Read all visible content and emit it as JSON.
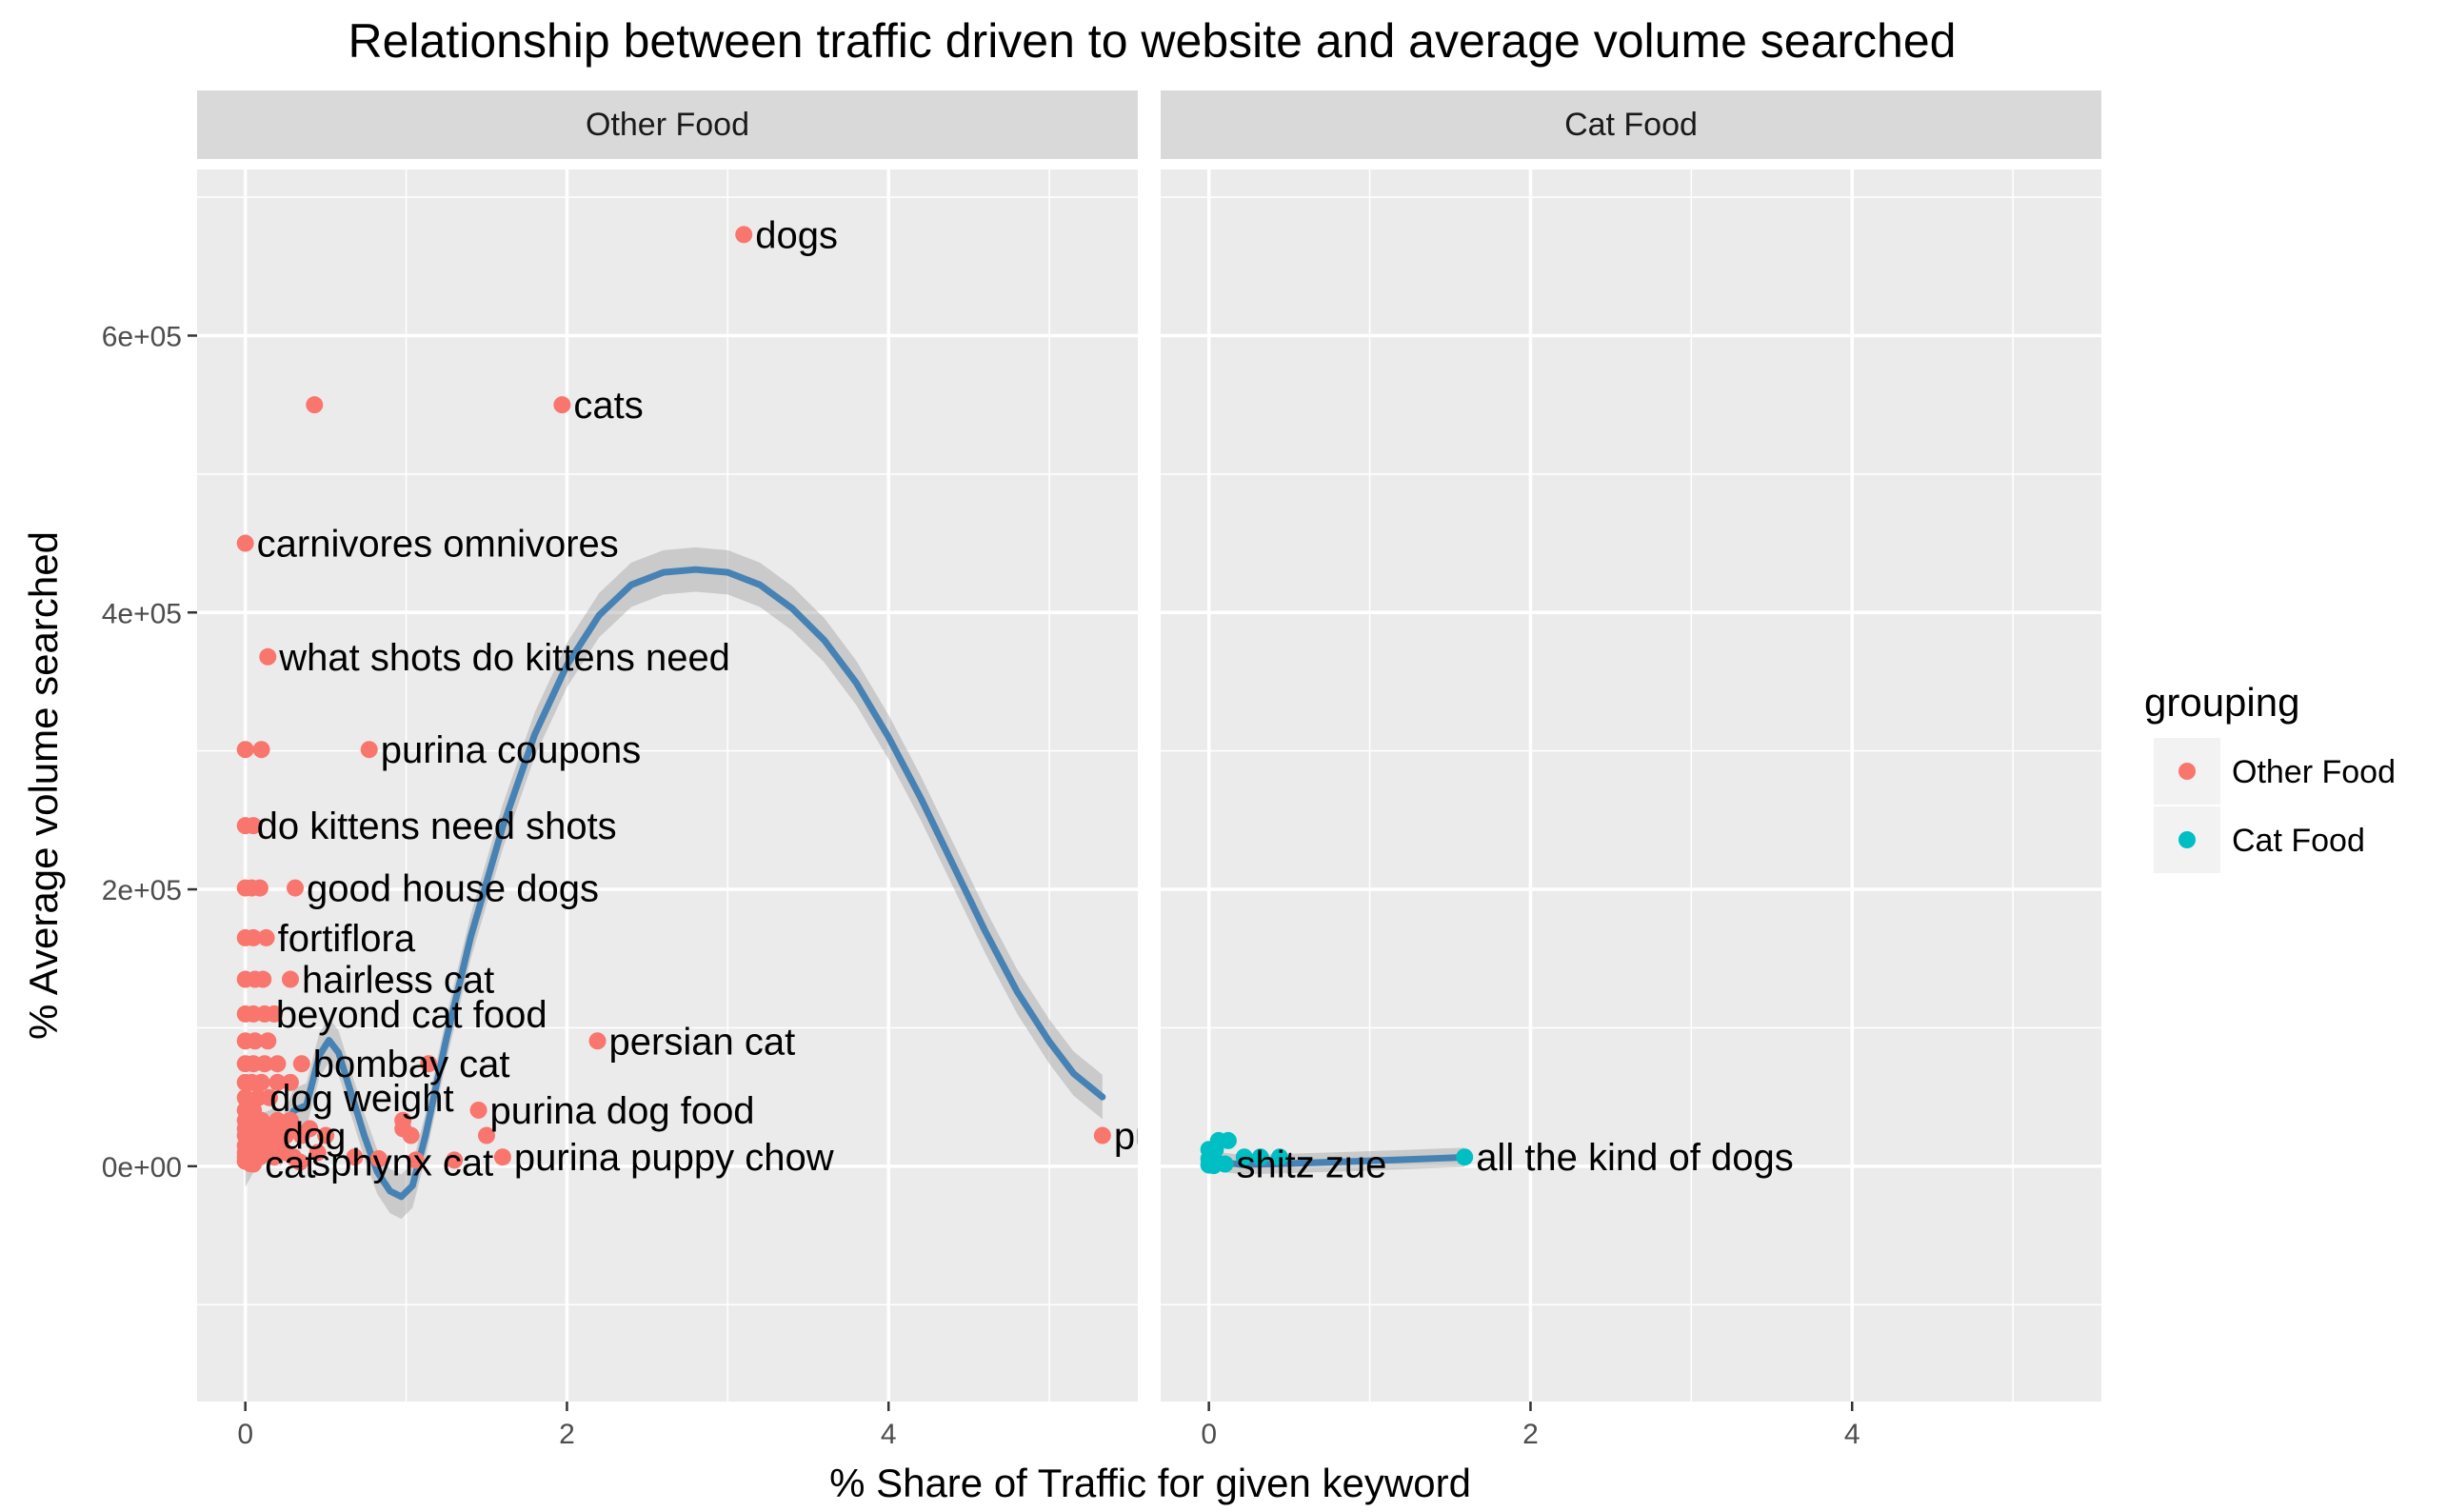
{
  "chart_data": {
    "type": "scatter",
    "title": "Relationship between traffic driven to website and average volume searched",
    "xlabel": "% Share of Traffic for given keyword",
    "ylabel": "% Average volume searched",
    "xlim": [
      -0.3,
      5.55
    ],
    "ylim": [
      -170000,
      720000
    ],
    "x_ticks": [
      0,
      2,
      4
    ],
    "x_tick_labels": [
      "0",
      "2",
      "4"
    ],
    "y_ticks": [
      0,
      200000,
      400000,
      600000
    ],
    "y_tick_labels": [
      "0e+00",
      "2e+05",
      "4e+05",
      "6e+05"
    ],
    "grid": true,
    "legend": {
      "title": "grouping",
      "position": "right",
      "entries": [
        {
          "label": "Other Food",
          "color": "#F8766D"
        },
        {
          "label": "Cat Food",
          "color": "#00BFC4"
        }
      ]
    },
    "smooth_color": "#4682B4",
    "panels": [
      {
        "name": "Other Food",
        "color": "#F8766D",
        "points": [
          {
            "x": 3.1,
            "y": 673000,
            "label": "dogs"
          },
          {
            "x": 0.43,
            "y": 550000,
            "label": ""
          },
          {
            "x": 1.97,
            "y": 550000,
            "label": "cats"
          },
          {
            "x": 0.0,
            "y": 450000,
            "label": "carnivores omnivores"
          },
          {
            "x": 0.14,
            "y": 368000,
            "label": "what shots do kittens need"
          },
          {
            "x": 0.0,
            "y": 301000,
            "label": ""
          },
          {
            "x": 0.1,
            "y": 301000,
            "label": ""
          },
          {
            "x": 0.77,
            "y": 301000,
            "label": "purina coupons"
          },
          {
            "x": 0.0,
            "y": 246000,
            "label": "do kittens need shots"
          },
          {
            "x": 0.05,
            "y": 246000,
            "label": ""
          },
          {
            "x": 0.0,
            "y": 201000,
            "label": ""
          },
          {
            "x": 0.04,
            "y": 201000,
            "label": ""
          },
          {
            "x": 0.09,
            "y": 201000,
            "label": ""
          },
          {
            "x": 0.31,
            "y": 201000,
            "label": "good house dogs"
          },
          {
            "x": 0.0,
            "y": 165000,
            "label": ""
          },
          {
            "x": 0.05,
            "y": 165000,
            "label": ""
          },
          {
            "x": 0.13,
            "y": 165000,
            "label": "fortiflora"
          },
          {
            "x": 0.0,
            "y": 135000,
            "label": ""
          },
          {
            "x": 0.06,
            "y": 135000,
            "label": ""
          },
          {
            "x": 0.11,
            "y": 135000,
            "label": ""
          },
          {
            "x": 0.28,
            "y": 135000,
            "label": "hairless cat"
          },
          {
            "x": 0.0,
            "y": 110000,
            "label": ""
          },
          {
            "x": 0.05,
            "y": 110000,
            "label": ""
          },
          {
            "x": 0.12,
            "y": 110000,
            "label": "beyond cat food"
          },
          {
            "x": 0.18,
            "y": 110000,
            "label": ""
          },
          {
            "x": 2.19,
            "y": 90500,
            "label": "persian cat"
          },
          {
            "x": 0.0,
            "y": 90500,
            "label": ""
          },
          {
            "x": 0.06,
            "y": 90500,
            "label": ""
          },
          {
            "x": 0.14,
            "y": 90500,
            "label": ""
          },
          {
            "x": 0.0,
            "y": 74000,
            "label": ""
          },
          {
            "x": 0.05,
            "y": 74000,
            "label": ""
          },
          {
            "x": 0.12,
            "y": 74000,
            "label": ""
          },
          {
            "x": 0.2,
            "y": 74000,
            "label": ""
          },
          {
            "x": 0.35,
            "y": 74000,
            "label": "bombay cat"
          },
          {
            "x": 1.14,
            "y": 74000,
            "label": ""
          },
          {
            "x": 0.0,
            "y": 60500,
            "label": ""
          },
          {
            "x": 0.04,
            "y": 60500,
            "label": ""
          },
          {
            "x": 0.1,
            "y": 60500,
            "label": ""
          },
          {
            "x": 0.2,
            "y": 60500,
            "label": ""
          },
          {
            "x": 0.28,
            "y": 60500,
            "label": ""
          },
          {
            "x": 0.0,
            "y": 49500,
            "label": ""
          },
          {
            "x": 0.08,
            "y": 49500,
            "label": "dog weight"
          },
          {
            "x": 0.15,
            "y": 49500,
            "label": ""
          },
          {
            "x": 0.0,
            "y": 40500,
            "label": ""
          },
          {
            "x": 0.05,
            "y": 40500,
            "label": ""
          },
          {
            "x": 1.45,
            "y": 40500,
            "label": "purina dog food"
          },
          {
            "x": 0.98,
            "y": 33100,
            "label": ""
          },
          {
            "x": 0.0,
            "y": 33100,
            "label": ""
          },
          {
            "x": 0.1,
            "y": 33100,
            "label": ""
          },
          {
            "x": 0.2,
            "y": 33100,
            "label": ""
          },
          {
            "x": 0.28,
            "y": 33100,
            "label": ""
          },
          {
            "x": 0.0,
            "y": 27100,
            "label": ""
          },
          {
            "x": 0.06,
            "y": 27100,
            "label": ""
          },
          {
            "x": 0.12,
            "y": 27100,
            "label": ""
          },
          {
            "x": 0.2,
            "y": 27100,
            "label": ""
          },
          {
            "x": 0.3,
            "y": 27100,
            "label": ""
          },
          {
            "x": 0.4,
            "y": 27100,
            "label": ""
          },
          {
            "x": 0.98,
            "y": 27100,
            "label": ""
          },
          {
            "x": 0.0,
            "y": 22200,
            "label": ""
          },
          {
            "x": 0.07,
            "y": 22200,
            "label": ""
          },
          {
            "x": 0.16,
            "y": 22200,
            "label": "dog"
          },
          {
            "x": 0.25,
            "y": 22200,
            "label": ""
          },
          {
            "x": 0.35,
            "y": 22200,
            "label": ""
          },
          {
            "x": 0.5,
            "y": 22200,
            "label": ""
          },
          {
            "x": 1.03,
            "y": 22200,
            "label": ""
          },
          {
            "x": 1.5,
            "y": 22200,
            "label": ""
          },
          {
            "x": 5.33,
            "y": 22200,
            "label": "pu"
          },
          {
            "x": 0.0,
            "y": 14800,
            "label": ""
          },
          {
            "x": 0.1,
            "y": 14800,
            "label": ""
          },
          {
            "x": 0.2,
            "y": 14800,
            "label": ""
          },
          {
            "x": 0.0,
            "y": 9900,
            "label": ""
          },
          {
            "x": 0.06,
            "y": 9900,
            "label": ""
          },
          {
            "x": 0.14,
            "y": 9900,
            "label": ""
          },
          {
            "x": 0.25,
            "y": 9900,
            "label": ""
          },
          {
            "x": 0.45,
            "y": 9900,
            "label": ""
          },
          {
            "x": 0.0,
            "y": 6600,
            "label": ""
          },
          {
            "x": 0.09,
            "y": 6600,
            "label": ""
          },
          {
            "x": 0.18,
            "y": 6600,
            "label": ""
          },
          {
            "x": 0.3,
            "y": 6600,
            "label": ""
          },
          {
            "x": 0.68,
            "y": 6600,
            "label": ""
          },
          {
            "x": 0.83,
            "y": 5400,
            "label": ""
          },
          {
            "x": 1.6,
            "y": 6600,
            "label": "purina puppy chow"
          },
          {
            "x": 0.0,
            "y": 3600,
            "label": ""
          },
          {
            "x": 0.03,
            "y": 1900,
            "label": ""
          },
          {
            "x": 0.05,
            "y": 1600,
            "label": "cat"
          },
          {
            "x": 0.34,
            "y": 2900,
            "label": "sphynx cat"
          },
          {
            "x": 1.06,
            "y": 4400,
            "label": ""
          },
          {
            "x": 1.3,
            "y": 4400,
            "label": ""
          }
        ],
        "smooth": [
          [
            0.0,
            1000
          ],
          [
            0.1,
            22000
          ],
          [
            0.18,
            26000
          ],
          [
            0.22,
            16000
          ],
          [
            0.3,
            40000
          ],
          [
            0.38,
            44000
          ],
          [
            0.46,
            80000
          ],
          [
            0.52,
            91000
          ],
          [
            0.58,
            82000
          ],
          [
            0.66,
            52000
          ],
          [
            0.74,
            22000
          ],
          [
            0.82,
            -4000
          ],
          [
            0.9,
            -18000
          ],
          [
            0.97,
            -22000
          ],
          [
            1.04,
            -14000
          ],
          [
            1.12,
            22000
          ],
          [
            1.25,
            92000
          ],
          [
            1.4,
            165000
          ],
          [
            1.6,
            245000
          ],
          [
            1.8,
            312000
          ],
          [
            2.0,
            362000
          ],
          [
            2.2,
            398000
          ],
          [
            2.4,
            420000
          ],
          [
            2.6,
            429000
          ],
          [
            2.8,
            431000
          ],
          [
            3.0,
            429000
          ],
          [
            3.2,
            420000
          ],
          [
            3.4,
            403000
          ],
          [
            3.6,
            380000
          ],
          [
            3.8,
            349000
          ],
          [
            4.0,
            310000
          ],
          [
            4.2,
            266000
          ],
          [
            4.4,
            218000
          ],
          [
            4.6,
            170000
          ],
          [
            4.8,
            126000
          ],
          [
            5.0,
            90000
          ],
          [
            5.15,
            67000
          ],
          [
            5.33,
            50000
          ]
        ]
      },
      {
        "name": "Cat Food",
        "color": "#00BFC4",
        "points": [
          {
            "x": 0.06,
            "y": 18500,
            "label": ""
          },
          {
            "x": 0.12,
            "y": 18500,
            "label": ""
          },
          {
            "x": 0.0,
            "y": 12100,
            "label": ""
          },
          {
            "x": 0.04,
            "y": 12100,
            "label": ""
          },
          {
            "x": 0.22,
            "y": 6600,
            "label": ""
          },
          {
            "x": 0.32,
            "y": 6600,
            "label": ""
          },
          {
            "x": 0.44,
            "y": 6600,
            "label": ""
          },
          {
            "x": 0.0,
            "y": 5400,
            "label": ""
          },
          {
            "x": 0.02,
            "y": 3600,
            "label": ""
          },
          {
            "x": 0.05,
            "y": 2400,
            "label": ""
          },
          {
            "x": 0.1,
            "y": 1600,
            "label": "shitz zue"
          },
          {
            "x": 0.0,
            "y": 880,
            "label": ""
          },
          {
            "x": 0.03,
            "y": 480,
            "label": ""
          },
          {
            "x": 1.59,
            "y": 6600,
            "label": "all the kind of dogs"
          }
        ],
        "smooth": [
          [
            0.0,
            2000
          ],
          [
            0.05,
            4200
          ],
          [
            0.1,
            2600
          ],
          [
            0.2,
            1200
          ],
          [
            0.4,
            1600
          ],
          [
            0.6,
            2400
          ],
          [
            0.8,
            3100
          ],
          [
            1.0,
            3900
          ],
          [
            1.2,
            4700
          ],
          [
            1.4,
            5600
          ],
          [
            1.59,
            6400
          ]
        ]
      }
    ]
  }
}
